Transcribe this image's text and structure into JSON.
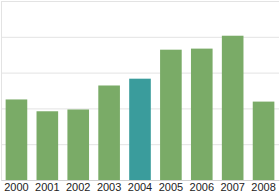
{
  "chart_data": {
    "type": "bar",
    "categories": [
      "2000",
      "2001",
      "2002",
      "2003",
      "2004",
      "2005",
      "2006",
      "2007",
      "2008"
    ],
    "values": [
      2.25,
      1.92,
      1.97,
      2.64,
      2.83,
      3.64,
      3.67,
      4.03,
      2.19
    ],
    "colors": [
      "#7aab67",
      "#7aab67",
      "#7aab67",
      "#7aab67",
      "#3a9c9c",
      "#7aab67",
      "#7aab67",
      "#7aab67",
      "#7aab67"
    ],
    "ylim": [
      0,
      5
    ],
    "yticks": [
      0,
      1,
      2,
      3,
      4,
      5
    ],
    "grid": true,
    "tick_labels": "x"
  }
}
